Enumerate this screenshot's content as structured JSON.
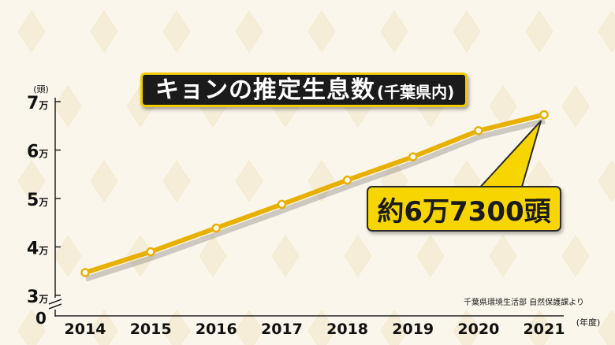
{
  "title": "キョンの推定生息数",
  "subtitle": "(千葉県内)",
  "callout": "約6万7300頭",
  "source": "千葉県環境生活部 自然保護課より",
  "colors": {
    "line": "#e8b000",
    "marker_fill": "#ffffff",
    "title_bg": "#1b1b1b",
    "title_border": "#f3cc00",
    "callout_bg": "#f7d600",
    "background": "#fbf6ec"
  },
  "chart_data": {
    "type": "line",
    "x": [
      "2014",
      "2015",
      "2016",
      "2017",
      "2018",
      "2019",
      "2020",
      "2021"
    ],
    "series": [
      {
        "values": [
          34700,
          39000,
          43900,
          48800,
          53800,
          58600,
          64000,
          67300
        ]
      }
    ],
    "ylim": [
      30000,
      70000
    ],
    "y_ticks": [
      {
        "value": 30000,
        "label": "3万"
      },
      {
        "value": 40000,
        "label": "4万"
      },
      {
        "value": 50000,
        "label": "5万"
      },
      {
        "value": 60000,
        "label": "6万"
      },
      {
        "value": 70000,
        "label": "7万"
      }
    ],
    "y_zero_label": "0",
    "y_unit": "(頭)",
    "x_unit": "(年度)",
    "axis_break": true,
    "grid": false
  }
}
